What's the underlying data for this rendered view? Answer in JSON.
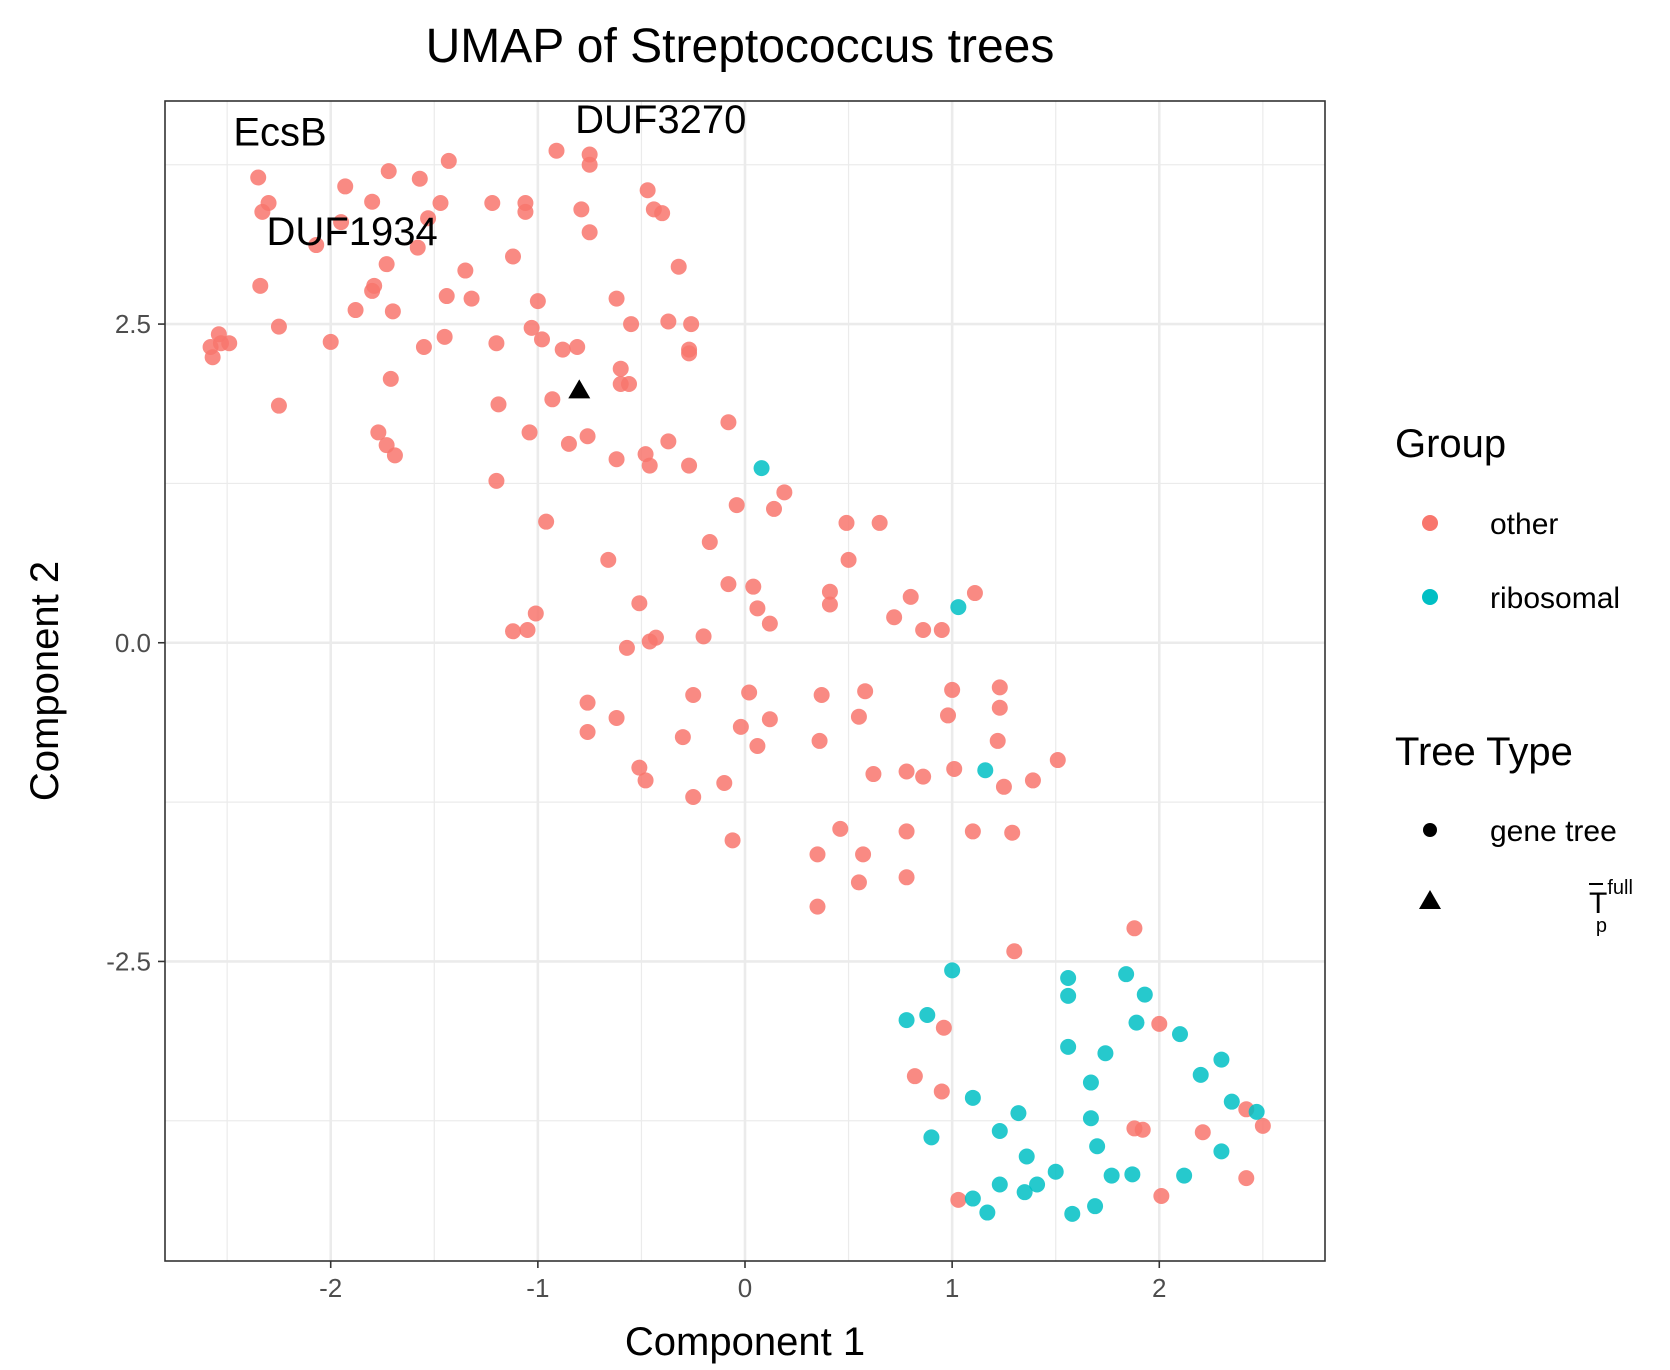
{
  "chart_data": {
    "type": "scatter",
    "title": "UMAP of Streptococcus trees",
    "xlabel": "Component 1",
    "ylabel": "Component 2",
    "xlim": [
      -2.8,
      2.8
    ],
    "ylim": [
      -4.85,
      4.25
    ],
    "x_ticks": [
      {
        "value": -2,
        "label": "-2"
      },
      {
        "value": -1,
        "label": "-1"
      },
      {
        "value": 0,
        "label": "0"
      },
      {
        "value": 1,
        "label": "1"
      },
      {
        "value": 2,
        "label": "2"
      }
    ],
    "y_ticks": [
      {
        "value": 2.5,
        "label": "2.5"
      },
      {
        "value": 0,
        "label": "0.0"
      },
      {
        "value": -2.5,
        "label": "-2.5"
      }
    ],
    "grid": true,
    "legend_position": "right",
    "colors": {
      "other": "#F8766D",
      "ribosomal": "#00BFC4",
      "highlight": "#000000"
    },
    "legend": {
      "group_title": "Group",
      "group_items": [
        {
          "label": "other",
          "color": "#F8766D"
        },
        {
          "label": "ribosomal",
          "color": "#00BFC4"
        }
      ],
      "type_title": "Tree Type",
      "type_items": [
        {
          "label": "gene tree",
          "shape": "circle"
        },
        {
          "label": "T",
          "sup": "full",
          "sub": "p",
          "shape": "triangle"
        }
      ]
    },
    "annotations": [
      {
        "label": "EcsB",
        "x": -2.47,
        "y": 3.9
      },
      {
        "label": "DUF3270",
        "x": -0.82,
        "y": 4.0
      },
      {
        "label": "DUF1934",
        "x": -2.31,
        "y": 3.12
      }
    ],
    "series": [
      {
        "name": "other",
        "tree_type": "gene tree",
        "points": [
          [
            -2.35,
            3.65
          ],
          [
            -2.3,
            3.45
          ],
          [
            -2.33,
            3.38
          ],
          [
            -1.72,
            3.7
          ],
          [
            -1.43,
            3.78
          ],
          [
            -1.57,
            3.64
          ],
          [
            -1.93,
            3.58
          ],
          [
            -1.8,
            3.46
          ],
          [
            -1.47,
            3.45
          ],
          [
            -1.53,
            3.33
          ],
          [
            -2.07,
            3.12
          ],
          [
            -1.95,
            3.3
          ],
          [
            -1.73,
            2.97
          ],
          [
            -1.58,
            3.1
          ],
          [
            -1.35,
            2.92
          ],
          [
            -1.8,
            2.76
          ],
          [
            -1.79,
            2.8
          ],
          [
            -1.7,
            2.6
          ],
          [
            -1.88,
            2.61
          ],
          [
            -2.34,
            2.8
          ],
          [
            -1.44,
            2.72
          ],
          [
            -1.32,
            2.7
          ],
          [
            -2.25,
            2.48
          ],
          [
            -2.54,
            2.42
          ],
          [
            -2.49,
            2.35
          ],
          [
            -2.53,
            2.35
          ],
          [
            -2.58,
            2.32
          ],
          [
            -2.57,
            2.24
          ],
          [
            -2.0,
            2.36
          ],
          [
            -1.55,
            2.32
          ],
          [
            -1.45,
            2.4
          ],
          [
            -1.71,
            2.07
          ],
          [
            -2.25,
            1.86
          ],
          [
            -1.77,
            1.65
          ],
          [
            -1.73,
            1.55
          ],
          [
            -1.69,
            1.47
          ],
          [
            -0.91,
            3.86
          ],
          [
            -0.75,
            3.83
          ],
          [
            -0.75,
            3.75
          ],
          [
            -0.79,
            3.4
          ],
          [
            -0.75,
            3.22
          ],
          [
            -1.22,
            3.45
          ],
          [
            -1.06,
            3.45
          ],
          [
            -1.06,
            3.38
          ],
          [
            -1.12,
            3.03
          ],
          [
            -1.0,
            2.68
          ],
          [
            -1.03,
            2.47
          ],
          [
            -0.98,
            2.38
          ],
          [
            -0.88,
            2.3
          ],
          [
            -0.81,
            2.32
          ],
          [
            -1.2,
            2.35
          ],
          [
            -1.19,
            1.87
          ],
          [
            -1.04,
            1.65
          ],
          [
            -0.85,
            1.56
          ],
          [
            -0.93,
            1.91
          ],
          [
            -0.76,
            1.62
          ],
          [
            -1.2,
            1.27
          ],
          [
            -0.96,
            0.95
          ],
          [
            -0.47,
            3.55
          ],
          [
            -0.44,
            3.4
          ],
          [
            -0.4,
            3.37
          ],
          [
            -0.32,
            2.95
          ],
          [
            -0.62,
            2.7
          ],
          [
            -0.55,
            2.5
          ],
          [
            -0.37,
            2.52
          ],
          [
            -0.26,
            2.5
          ],
          [
            -0.27,
            2.3
          ],
          [
            -0.27,
            2.27
          ],
          [
            -0.6,
            2.15
          ],
          [
            -0.6,
            2.03
          ],
          [
            -0.56,
            2.03
          ],
          [
            -0.37,
            1.58
          ],
          [
            -0.48,
            1.48
          ],
          [
            -0.46,
            1.39
          ],
          [
            -0.62,
            1.44
          ],
          [
            -0.27,
            1.39
          ],
          [
            -0.08,
            1.73
          ],
          [
            -0.04,
            1.08
          ],
          [
            -0.66,
            0.65
          ],
          [
            -0.17,
            0.79
          ],
          [
            0.14,
            1.05
          ],
          [
            0.19,
            1.18
          ],
          [
            0.49,
            0.94
          ],
          [
            0.65,
            0.94
          ],
          [
            0.5,
            0.65
          ],
          [
            -0.08,
            0.46
          ],
          [
            0.04,
            0.44
          ],
          [
            0.06,
            0.27
          ],
          [
            0.41,
            0.4
          ],
          [
            0.41,
            0.3
          ],
          [
            0.12,
            0.15
          ],
          [
            -0.51,
            0.31
          ],
          [
            -0.57,
            -0.04
          ],
          [
            -0.46,
            0.01
          ],
          [
            -0.43,
            0.04
          ],
          [
            -0.2,
            0.05
          ],
          [
            -1.01,
            0.23
          ],
          [
            -1.12,
            0.09
          ],
          [
            -1.05,
            0.1
          ],
          [
            0.8,
            0.36
          ],
          [
            0.72,
            0.2
          ],
          [
            0.86,
            0.1
          ],
          [
            0.95,
            0.1
          ],
          [
            1.11,
            0.39
          ],
          [
            -0.76,
            -0.47
          ],
          [
            -0.76,
            -0.7
          ],
          [
            -0.62,
            -0.59
          ],
          [
            -0.25,
            -0.41
          ],
          [
            -0.3,
            -0.74
          ],
          [
            0.02,
            -0.39
          ],
          [
            -0.02,
            -0.66
          ],
          [
            0.12,
            -0.6
          ],
          [
            0.06,
            -0.81
          ],
          [
            0.37,
            -0.41
          ],
          [
            0.58,
            -0.38
          ],
          [
            0.55,
            -0.58
          ],
          [
            1.0,
            -0.37
          ],
          [
            0.98,
            -0.57
          ],
          [
            1.23,
            -0.35
          ],
          [
            1.23,
            -0.51
          ],
          [
            1.22,
            -0.77
          ],
          [
            -0.51,
            -0.98
          ],
          [
            -0.48,
            -1.08
          ],
          [
            -0.25,
            -1.21
          ],
          [
            -0.1,
            -1.1
          ],
          [
            0.36,
            -0.77
          ],
          [
            0.62,
            -1.03
          ],
          [
            0.78,
            -1.01
          ],
          [
            0.86,
            -1.05
          ],
          [
            1.01,
            -0.99
          ],
          [
            1.25,
            -1.13
          ],
          [
            1.39,
            -1.08
          ],
          [
            1.51,
            -0.92
          ],
          [
            -0.06,
            -1.55
          ],
          [
            0.46,
            -1.46
          ],
          [
            0.78,
            -1.48
          ],
          [
            1.1,
            -1.48
          ],
          [
            1.29,
            -1.49
          ],
          [
            0.35,
            -1.66
          ],
          [
            0.57,
            -1.66
          ],
          [
            0.55,
            -1.88
          ],
          [
            0.78,
            -1.84
          ],
          [
            0.35,
            -2.07
          ],
          [
            1.3,
            -2.42
          ],
          [
            1.88,
            -2.24
          ],
          [
            0.96,
            -3.02
          ],
          [
            2.0,
            -2.99
          ],
          [
            0.82,
            -3.4
          ],
          [
            0.95,
            -3.52
          ],
          [
            2.42,
            -3.66
          ],
          [
            1.88,
            -3.81
          ],
          [
            1.92,
            -3.82
          ],
          [
            2.21,
            -3.84
          ],
          [
            2.5,
            -3.79
          ],
          [
            2.42,
            -4.2
          ],
          [
            1.03,
            -4.37
          ],
          [
            2.01,
            -4.34
          ]
        ]
      },
      {
        "name": "ribosomal",
        "tree_type": "gene tree",
        "points": [
          [
            0.08,
            1.37
          ],
          [
            1.03,
            0.28
          ],
          [
            1.16,
            -1.0
          ],
          [
            1.0,
            -2.57
          ],
          [
            0.78,
            -2.96
          ],
          [
            0.88,
            -2.92
          ],
          [
            1.56,
            -2.63
          ],
          [
            1.56,
            -2.77
          ],
          [
            1.84,
            -2.6
          ],
          [
            1.93,
            -2.76
          ],
          [
            1.89,
            -2.98
          ],
          [
            2.1,
            -3.07
          ],
          [
            1.56,
            -3.17
          ],
          [
            1.74,
            -3.22
          ],
          [
            2.3,
            -3.27
          ],
          [
            2.2,
            -3.39
          ],
          [
            1.67,
            -3.45
          ],
          [
            2.35,
            -3.6
          ],
          [
            2.47,
            -3.68
          ],
          [
            1.1,
            -3.57
          ],
          [
            1.32,
            -3.69
          ],
          [
            1.67,
            -3.73
          ],
          [
            1.23,
            -3.83
          ],
          [
            0.9,
            -3.88
          ],
          [
            1.7,
            -3.95
          ],
          [
            2.3,
            -3.99
          ],
          [
            1.36,
            -4.03
          ],
          [
            1.5,
            -4.15
          ],
          [
            1.77,
            -4.18
          ],
          [
            1.87,
            -4.17
          ],
          [
            2.12,
            -4.18
          ],
          [
            1.23,
            -4.25
          ],
          [
            1.41,
            -4.25
          ],
          [
            1.35,
            -4.31
          ],
          [
            1.1,
            -4.36
          ],
          [
            1.17,
            -4.47
          ],
          [
            1.58,
            -4.48
          ],
          [
            1.69,
            -4.42
          ]
        ]
      },
      {
        "name": "",
        "tree_type": "T full p",
        "points": [
          [
            -0.8,
            1.98
          ]
        ]
      }
    ]
  }
}
